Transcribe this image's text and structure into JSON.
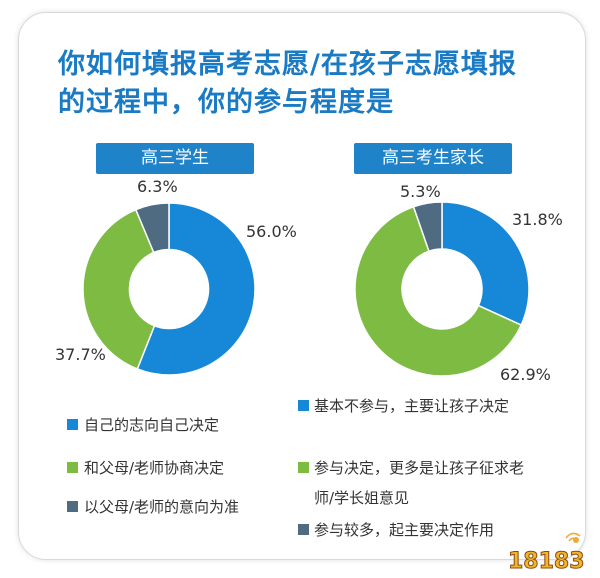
{
  "title_line1": "你如何填报高考志愿/在孩子志愿填报",
  "title_line2": "的过程中，你的参与程度是",
  "colors": {
    "blue": "#1788d8",
    "green": "#7dbb43",
    "dark": "#4e6b81"
  },
  "chart_data": [
    {
      "type": "pie",
      "donut": true,
      "title": "高三学生",
      "labels": [
        "自己的志向自己决定",
        "和父母/老师协商决定",
        "以父母/老师的意向为准"
      ],
      "values": [
        56.0,
        37.7,
        6.3
      ],
      "value_labels": [
        "56.0%",
        "37.7%",
        "6.3%"
      ]
    },
    {
      "type": "pie",
      "donut": true,
      "title": "高三考生家长",
      "labels": [
        "基本不参与，主要让孩子决定",
        "参与决定，更多是让孩子征求老师/学长姐意见",
        "参与较多，起主要决定作用"
      ],
      "values": [
        31.8,
        62.9,
        5.3
      ],
      "value_labels": [
        "31.8%",
        "62.9%",
        "5.3%"
      ]
    }
  ],
  "legend_left": [
    "自己的志向自己决定",
    "和父母/老师协商决定",
    "以父母/老师的意向为准"
  ],
  "legend_right": [
    "基本不参与，主要让孩子决定",
    "参与决定，更多是让孩子征求老",
    "师/学长姐意见",
    "参与较多，起主要决定作用"
  ],
  "watermark": "18183"
}
